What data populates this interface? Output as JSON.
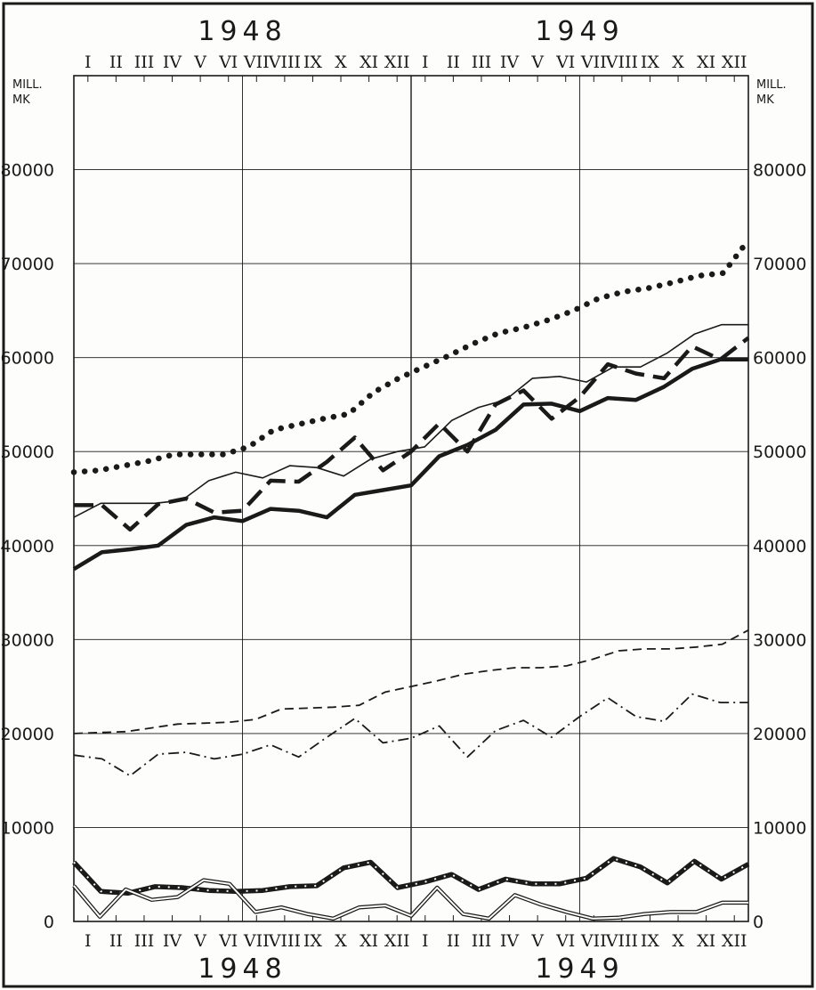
{
  "chart_data": {
    "type": "line",
    "title": "",
    "xlabel": "",
    "ylabel": "",
    "year_labels_top": [
      "1948",
      "1949"
    ],
    "year_labels_bottom": [
      "1948",
      "1949"
    ],
    "month_labels": [
      "I",
      "II",
      "III",
      "IV",
      "V",
      "VI",
      "VII",
      "VIII",
      "IX",
      "X",
      "XI",
      "XII"
    ],
    "unit_left": [
      "MILL.",
      "MK"
    ],
    "unit_right": [
      "MILL.",
      "MK"
    ],
    "ylim": [
      0,
      90000
    ],
    "yticks": [
      0,
      10000,
      20000,
      30000,
      40000,
      50000,
      60000,
      70000,
      80000
    ],
    "ytick_labels": [
      "0",
      "10000",
      "20000",
      "30000",
      "40000",
      "50000",
      "60000",
      "70000",
      "80000"
    ],
    "grid": true,
    "colors": {
      "ink": "#1a1a1a",
      "background": "#fdfdfb"
    },
    "series": [
      {
        "style": "dotted-thick",
        "values": [
          47800,
          48000,
          48500,
          49000,
          49700,
          49700,
          49700,
          50500,
          52300,
          52900,
          53500,
          54000,
          56300,
          57800,
          59000,
          60200,
          61500,
          62600,
          63200,
          64000,
          65000,
          66300,
          67000,
          67400,
          68000,
          68700,
          69000,
          72500
        ]
      },
      {
        "style": "solid-thin",
        "values": [
          43000,
          44500,
          44500,
          44500,
          44800,
          46900,
          47800,
          47200,
          48500,
          48300,
          47400,
          49200,
          50000,
          50500,
          53300,
          54700,
          55500,
          57800,
          58000,
          57400,
          59000,
          59000,
          60500,
          62500,
          63500,
          63500
        ]
      },
      {
        "style": "dashed-thick",
        "values": [
          44300,
          44300,
          41700,
          44400,
          45000,
          43500,
          43700,
          46900,
          46800,
          48900,
          51500,
          48000,
          50000,
          53000,
          50000,
          55000,
          56500,
          53500,
          55800,
          59300,
          58300,
          57800,
          61200,
          59800,
          62100
        ]
      },
      {
        "style": "solid-thick",
        "values": [
          37500,
          39300,
          39600,
          40000,
          42200,
          43000,
          42600,
          43900,
          43700,
          43000,
          45400,
          45900,
          46400,
          49500,
          50700,
          52300,
          55000,
          55100,
          54300,
          55700,
          55500,
          56900,
          58800,
          59800,
          59800
        ]
      },
      {
        "style": "dashed-thin",
        "values": [
          20000,
          20100,
          20200,
          20600,
          21000,
          21100,
          21200,
          21500,
          22600,
          22700,
          22800,
          23000,
          24400,
          25000,
          25600,
          26300,
          26700,
          27000,
          27000,
          27200,
          27900,
          28800,
          29000,
          29000,
          29200,
          29500,
          31000
        ]
      },
      {
        "style": "dash-dot",
        "values": [
          17700,
          17300,
          15500,
          17800,
          18000,
          17300,
          17800,
          18800,
          17500,
          19600,
          21600,
          19000,
          19500,
          20800,
          17500,
          20300,
          21400,
          19600,
          21800,
          23800,
          21800,
          21300,
          24200,
          23300,
          23300
        ]
      },
      {
        "style": "chain-thick",
        "values": [
          6300,
          3200,
          3000,
          3700,
          3600,
          3300,
          3200,
          3300,
          3700,
          3800,
          5700,
          6300,
          3600,
          4200,
          5000,
          3400,
          4500,
          4000,
          4000,
          4600,
          6700,
          5800,
          4100,
          6400,
          4500,
          6100
        ]
      },
      {
        "style": "double-line",
        "values": [
          3800,
          500,
          3400,
          2300,
          2600,
          4400,
          4000,
          1000,
          1500,
          800,
          300,
          1500,
          1700,
          600,
          3600,
          800,
          300,
          2800,
          1800,
          1000,
          300,
          400,
          800,
          1000,
          1000,
          2000,
          2000
        ]
      }
    ]
  }
}
